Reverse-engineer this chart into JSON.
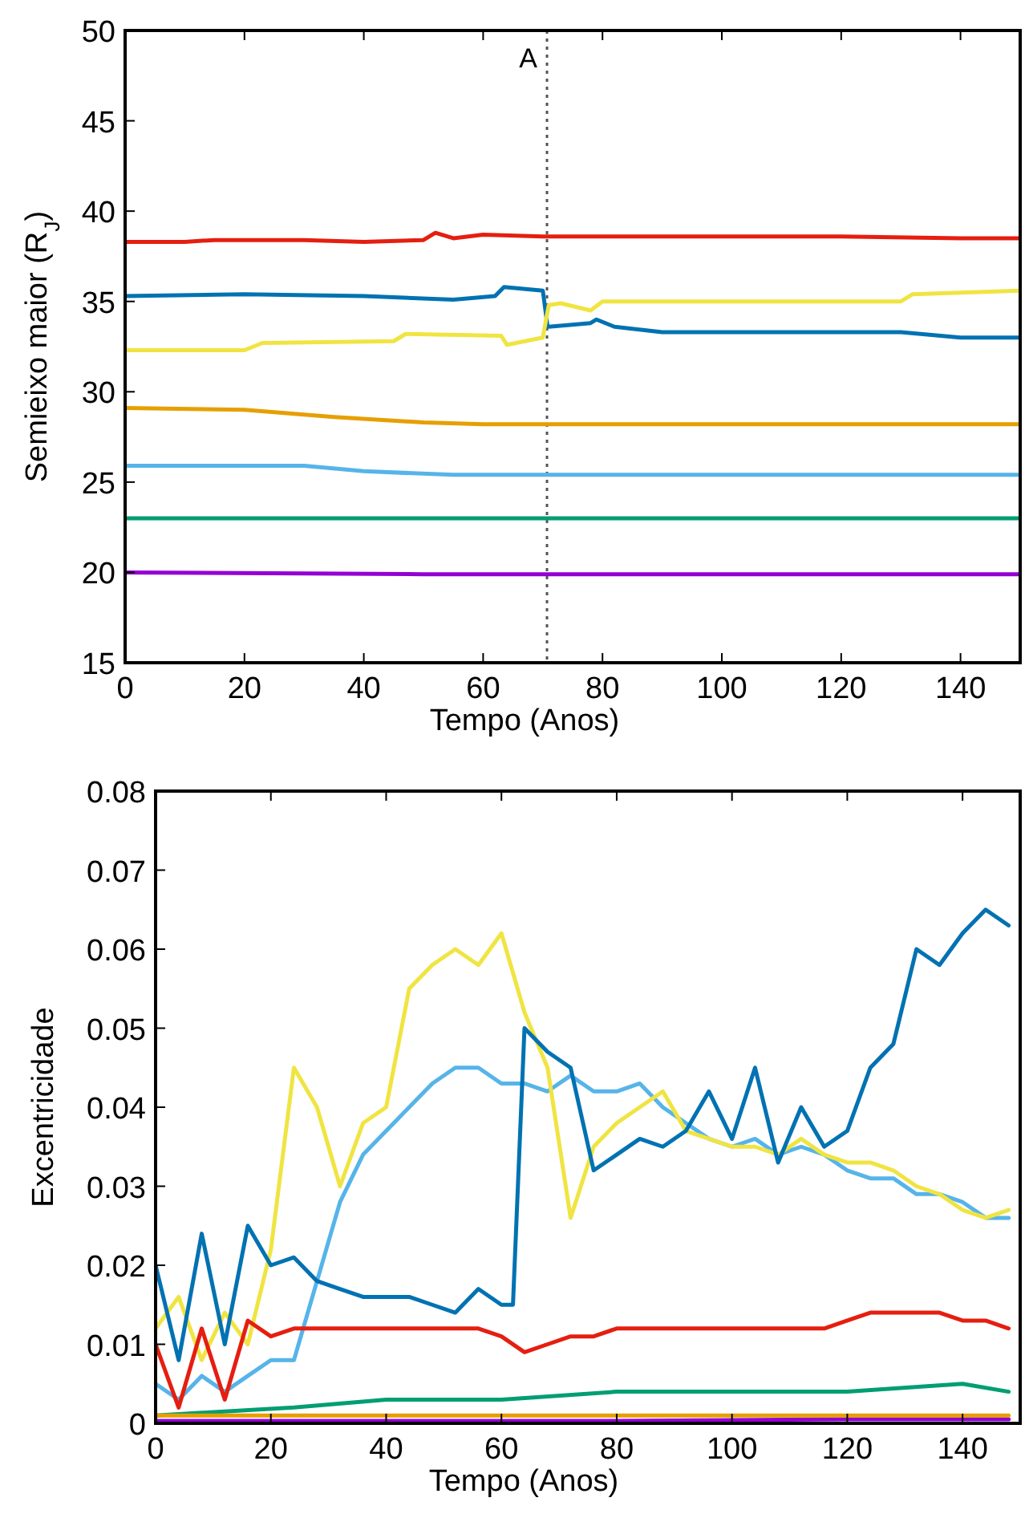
{
  "chart_data": [
    {
      "type": "line",
      "xlabel": "Tempo (Anos)",
      "ylabel": "Semieixo maior (R$_{J}$)",
      "xlim": [
        0,
        150
      ],
      "ylim": [
        15,
        50
      ],
      "xticks": [
        0,
        20,
        40,
        60,
        80,
        100,
        120,
        140
      ],
      "yticks": [
        15,
        20,
        25,
        30,
        35,
        40,
        45,
        50
      ],
      "ref_lines": [
        {
          "axis": "x",
          "value": 70.7,
          "label": "A",
          "color": "#555555",
          "line_style": "dotted"
        }
      ],
      "series": [
        {
          "color": "#e51e10",
          "x": [
            0,
            10,
            15,
            20,
            30,
            40,
            50,
            52,
            55,
            60,
            70,
            80,
            100,
            120,
            140,
            150
          ],
          "values": [
            38.3,
            38.3,
            38.4,
            38.4,
            38.4,
            38.3,
            38.4,
            38.8,
            38.5,
            38.7,
            38.6,
            38.6,
            38.6,
            38.6,
            38.5,
            38.5
          ]
        },
        {
          "color": "#0072b2",
          "x": [
            0,
            20,
            40,
            55,
            62,
            63.5,
            70,
            70.8,
            71,
            78,
            79,
            82,
            90,
            110,
            130,
            140,
            150
          ],
          "values": [
            35.3,
            35.4,
            35.3,
            35.1,
            35.3,
            35.8,
            35.6,
            33.6,
            33.6,
            33.8,
            34.0,
            33.6,
            33.3,
            33.3,
            33.3,
            33.0,
            33.0
          ]
        },
        {
          "color": "#f0e442",
          "x": [
            0,
            20,
            23,
            45,
            47,
            63,
            64,
            70,
            71,
            73,
            78,
            80,
            85,
            110,
            130,
            132,
            150
          ],
          "values": [
            32.3,
            32.3,
            32.7,
            32.8,
            33.2,
            33.1,
            32.6,
            33.0,
            34.8,
            34.9,
            34.5,
            35.0,
            35.0,
            35.0,
            35.0,
            35.4,
            35.6
          ]
        },
        {
          "color": "#e69f00",
          "x": [
            0,
            20,
            35,
            50,
            60,
            80,
            100,
            120,
            150
          ],
          "values": [
            29.1,
            29.0,
            28.6,
            28.3,
            28.2,
            28.2,
            28.2,
            28.2,
            28.2
          ]
        },
        {
          "color": "#56b4e9",
          "x": [
            0,
            30,
            40,
            55,
            80,
            100,
            120,
            150
          ],
          "values": [
            25.9,
            25.9,
            25.6,
            25.4,
            25.4,
            25.4,
            25.4,
            25.4
          ]
        },
        {
          "color": "#009e73",
          "x": [
            0,
            50,
            100,
            150
          ],
          "values": [
            23.0,
            23.0,
            23.0,
            23.0
          ]
        },
        {
          "color": "#9400d3",
          "x": [
            0,
            50,
            100,
            150
          ],
          "values": [
            20.0,
            19.9,
            19.9,
            19.9
          ]
        }
      ]
    },
    {
      "type": "line",
      "xlabel": "Tempo (Anos)",
      "ylabel": "Excentricidade",
      "xlim": [
        0,
        150
      ],
      "ylim": [
        0,
        0.08
      ],
      "xticks": [
        0,
        20,
        40,
        60,
        80,
        100,
        120,
        140
      ],
      "yticks": [
        0,
        0.01,
        0.02,
        0.03,
        0.04,
        0.05,
        0.06,
        0.07,
        0.08
      ],
      "series": [
        {
          "color": "#9400d3",
          "x": [
            0,
            40,
            80,
            120,
            148
          ],
          "values": [
            0.0003,
            0.0003,
            0.0003,
            0.0005,
            0.0005
          ]
        },
        {
          "color": "#009e73",
          "x": [
            0,
            24,
            40,
            60,
            80,
            100,
            120,
            140,
            148
          ],
          "values": [
            0.001,
            0.002,
            0.003,
            0.003,
            0.004,
            0.004,
            0.004,
            0.005,
            0.004
          ]
        },
        {
          "color": "#56b4e9",
          "x": [
            0,
            4,
            8,
            12,
            16,
            20,
            24,
            28,
            32,
            36,
            40,
            44,
            48,
            52,
            56,
            60,
            64,
            68,
            72,
            76,
            80,
            84,
            88,
            92,
            96,
            100,
            104,
            108,
            112,
            116,
            120,
            124,
            128,
            132,
            136,
            140,
            144,
            148
          ],
          "values": [
            0.005,
            0.003,
            0.006,
            0.004,
            0.006,
            0.008,
            0.008,
            0.018,
            0.028,
            0.034,
            0.037,
            0.04,
            0.043,
            0.045,
            0.045,
            0.043,
            0.043,
            0.042,
            0.044,
            0.042,
            0.042,
            0.043,
            0.04,
            0.038,
            0.036,
            0.035,
            0.036,
            0.034,
            0.035,
            0.034,
            0.032,
            0.031,
            0.031,
            0.029,
            0.029,
            0.028,
            0.026,
            0.026
          ]
        },
        {
          "color": "#f0e442",
          "x": [
            0,
            4,
            8,
            12,
            16,
            20,
            24,
            28,
            32,
            36,
            40,
            44,
            48,
            52,
            56,
            60,
            64,
            68,
            72,
            76,
            80,
            84,
            88,
            92,
            96,
            100,
            104,
            108,
            112,
            116,
            120,
            124,
            128,
            132,
            136,
            140,
            144,
            148
          ],
          "values": [
            0.012,
            0.016,
            0.008,
            0.014,
            0.01,
            0.022,
            0.045,
            0.04,
            0.03,
            0.038,
            0.04,
            0.055,
            0.058,
            0.06,
            0.058,
            0.062,
            0.052,
            0.045,
            0.026,
            0.035,
            0.038,
            0.04,
            0.042,
            0.037,
            0.036,
            0.035,
            0.035,
            0.034,
            0.036,
            0.034,
            0.033,
            0.033,
            0.032,
            0.03,
            0.029,
            0.027,
            0.026,
            0.027
          ]
        },
        {
          "color": "#0072b2",
          "x": [
            0,
            4,
            8,
            12,
            16,
            20,
            24,
            28,
            32,
            36,
            40,
            44,
            48,
            52,
            56,
            60,
            62,
            64,
            68,
            72,
            76,
            80,
            84,
            88,
            92,
            96,
            100,
            104,
            108,
            112,
            116,
            120,
            124,
            128,
            132,
            136,
            140,
            144,
            148
          ],
          "values": [
            0.02,
            0.008,
            0.024,
            0.01,
            0.025,
            0.02,
            0.021,
            0.018,
            0.017,
            0.016,
            0.016,
            0.016,
            0.015,
            0.014,
            0.017,
            0.015,
            0.015,
            0.05,
            0.047,
            0.045,
            0.032,
            0.034,
            0.036,
            0.035,
            0.037,
            0.042,
            0.036,
            0.045,
            0.033,
            0.04,
            0.035,
            0.037,
            0.045,
            0.048,
            0.06,
            0.058,
            0.062,
            0.065,
            0.063
          ]
        },
        {
          "color": "#e51e10",
          "x": [
            0,
            4,
            8,
            12,
            16,
            20,
            24,
            28,
            32,
            36,
            40,
            44,
            48,
            52,
            56,
            60,
            64,
            68,
            72,
            76,
            80,
            84,
            88,
            92,
            96,
            100,
            104,
            108,
            112,
            116,
            120,
            124,
            128,
            132,
            136,
            140,
            144,
            148
          ],
          "values": [
            0.01,
            0.002,
            0.012,
            0.003,
            0.013,
            0.011,
            0.012,
            0.012,
            0.012,
            0.012,
            0.012,
            0.012,
            0.012,
            0.012,
            0.012,
            0.011,
            0.009,
            0.01,
            0.011,
            0.011,
            0.012,
            0.012,
            0.012,
            0.012,
            0.012,
            0.012,
            0.012,
            0.012,
            0.012,
            0.012,
            0.013,
            0.014,
            0.014,
            0.014,
            0.014,
            0.013,
            0.013,
            0.012
          ]
        },
        {
          "color": "#e69f00",
          "x": [
            0,
            40,
            80,
            120,
            148
          ],
          "values": [
            0.001,
            0.001,
            0.001,
            0.001,
            0.001
          ]
        }
      ]
    }
  ]
}
